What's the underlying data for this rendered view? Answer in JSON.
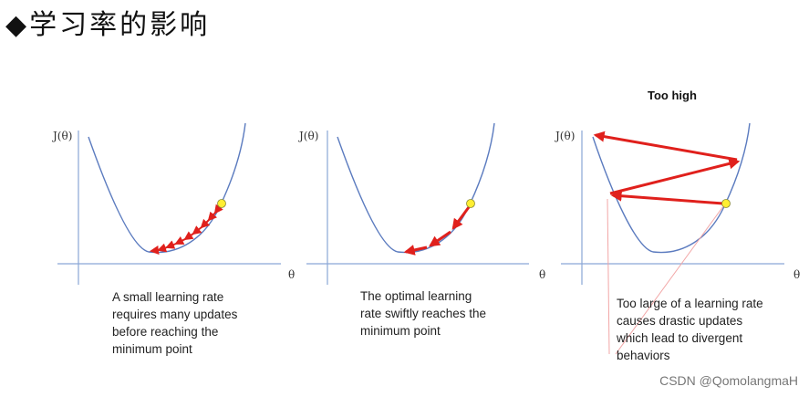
{
  "page": {
    "title": "◆学习率的影响",
    "watermark": "CSDN @QomolangmaH"
  },
  "panels": [
    {
      "id": "small",
      "title": "",
      "y_axis_label": "J(θ)",
      "x_axis_label": "θ",
      "caption_lines": [
        "A small learning rate",
        "requires many updates",
        "before reaching the",
        "minimum point"
      ]
    },
    {
      "id": "optimal",
      "title": "",
      "y_axis_label": "J(θ)",
      "x_axis_label": "θ",
      "caption_lines": [
        "The optimal learning",
        "rate swiftly reaches the",
        "minimum point"
      ]
    },
    {
      "id": "high",
      "title": "Too high",
      "y_axis_label": "J(θ)",
      "x_axis_label": "θ",
      "caption_lines": [
        "Too large of a learning rate",
        "causes drastic updates",
        "which lead to divergent",
        "behaviors"
      ]
    }
  ],
  "colors": {
    "curve": "#5b7bbf",
    "axis": "#8aa7d6",
    "arrow": "#e0201c",
    "start_point": "#ffee33"
  }
}
